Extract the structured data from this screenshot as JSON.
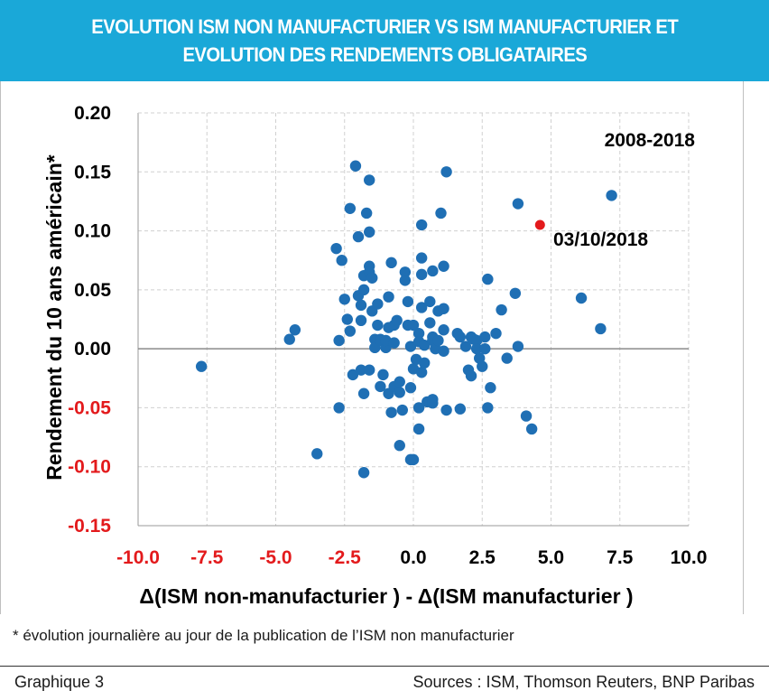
{
  "header": {
    "title_line1": "EVOLUTION ISM NON MANUFACTURIER VS ISM MANUFACTURIER ET",
    "title_line2": "EVOLUTION DES RENDEMENTS OBLIGATAIRES"
  },
  "footnote": "* évolution journalière au jour de la publication de l’ISM non manufacturier",
  "caption": {
    "left": "Graphique 3",
    "right": "Sources : ISM, Thomson Reuters, BNP Paribas"
  },
  "colors": {
    "header": "#1aa8d8",
    "points": "#1f6fb4",
    "highlight": "#e31a1c",
    "negative_tick": "#e31a1c"
  },
  "chart_data": {
    "type": "scatter",
    "xlabel": "Δ(ISM non-manufacturier )  - Δ(ISM manufacturier )",
    "ylabel": "Rendement du 10 ans américain*",
    "xlim": [
      -10,
      10
    ],
    "ylim": [
      -0.15,
      0.2
    ],
    "x_ticks": [
      "-10.0",
      "-7.5",
      "-5.0",
      "-2.5",
      "0.0",
      "2.5",
      "5.0",
      "7.5",
      "10.0"
    ],
    "y_ticks": [
      "0.20",
      "0.15",
      "0.10",
      "0.05",
      "0.00",
      "-0.05",
      "-0.10",
      "-0.15"
    ],
    "grid": true,
    "annotations": {
      "period": "2008-2018",
      "highlight_label": "03/10/2018"
    },
    "highlight": {
      "x": 4.6,
      "y": 0.105
    },
    "points": [
      [
        -7.7,
        -0.015
      ],
      [
        -4.5,
        0.008
      ],
      [
        -4.3,
        0.016
      ],
      [
        -3.5,
        -0.089
      ],
      [
        -2.8,
        0.085
      ],
      [
        -2.7,
        0.007
      ],
      [
        -2.7,
        -0.05
      ],
      [
        -2.6,
        0.075
      ],
      [
        -2.5,
        0.042
      ],
      [
        -2.4,
        0.025
      ],
      [
        -2.3,
        0.015
      ],
      [
        -2.3,
        0.119
      ],
      [
        -2.2,
        -0.022
      ],
      [
        -2.1,
        0.155
      ],
      [
        -2.0,
        0.095
      ],
      [
        -2.0,
        0.045
      ],
      [
        -1.9,
        0.037
      ],
      [
        -1.9,
        0.024
      ],
      [
        -1.9,
        -0.018
      ],
      [
        -1.8,
        0.05
      ],
      [
        -1.8,
        0.062
      ],
      [
        -1.8,
        -0.105
      ],
      [
        -1.8,
        -0.038
      ],
      [
        -1.7,
        0.115
      ],
      [
        -1.6,
        0.143
      ],
      [
        -1.6,
        0.099
      ],
      [
        -1.6,
        0.07
      ],
      [
        -1.6,
        0.065
      ],
      [
        -1.6,
        -0.018
      ],
      [
        -1.5,
        0.06
      ],
      [
        -1.5,
        0.032
      ],
      [
        -1.4,
        0.008
      ],
      [
        -1.4,
        0.001
      ],
      [
        -1.3,
        0.02
      ],
      [
        -1.3,
        0.038
      ],
      [
        -1.2,
        0.008
      ],
      [
        -1.2,
        0.007
      ],
      [
        -1.2,
        -0.032
      ],
      [
        -1.1,
        -0.022
      ],
      [
        -1.0,
        0.001
      ],
      [
        -1.0,
        0.007
      ],
      [
        -0.9,
        0.018
      ],
      [
        -0.9,
        0.044
      ],
      [
        -0.9,
        -0.038
      ],
      [
        -0.8,
        0.073
      ],
      [
        -0.8,
        -0.054
      ],
      [
        -0.7,
        0.02
      ],
      [
        -0.7,
        0.005
      ],
      [
        -0.7,
        -0.032
      ],
      [
        -0.6,
        0.024
      ],
      [
        -0.5,
        -0.028
      ],
      [
        -0.5,
        -0.037
      ],
      [
        -0.5,
        -0.082
      ],
      [
        -0.4,
        -0.052
      ],
      [
        -0.3,
        0.065
      ],
      [
        -0.3,
        0.058
      ],
      [
        -0.2,
        0.04
      ],
      [
        -0.2,
        0.02
      ],
      [
        -0.1,
        0.002
      ],
      [
        -0.1,
        -0.033
      ],
      [
        -0.1,
        -0.094
      ],
      [
        0.0,
        0.02
      ],
      [
        0.0,
        -0.017
      ],
      [
        0.0,
        -0.094
      ],
      [
        0.1,
        -0.009
      ],
      [
        0.2,
        0.013
      ],
      [
        0.2,
        0.006
      ],
      [
        0.2,
        -0.068
      ],
      [
        0.2,
        -0.05
      ],
      [
        0.3,
        0.077
      ],
      [
        0.3,
        0.063
      ],
      [
        0.3,
        0.105
      ],
      [
        0.3,
        0.035
      ],
      [
        0.3,
        -0.02
      ],
      [
        0.4,
        0.003
      ],
      [
        0.4,
        -0.012
      ],
      [
        0.5,
        -0.045
      ],
      [
        0.6,
        0.022
      ],
      [
        0.6,
        0.04
      ],
      [
        0.7,
        0.01
      ],
      [
        0.7,
        0.007
      ],
      [
        0.7,
        0.066
      ],
      [
        0.7,
        -0.043
      ],
      [
        0.7,
        -0.046
      ],
      [
        0.8,
        0.0
      ],
      [
        0.9,
        0.032
      ],
      [
        0.9,
        0.007
      ],
      [
        1.0,
        0.115
      ],
      [
        1.1,
        0.07
      ],
      [
        1.1,
        0.034
      ],
      [
        1.1,
        0.016
      ],
      [
        1.1,
        -0.002
      ],
      [
        1.2,
        0.15
      ],
      [
        1.2,
        -0.052
      ],
      [
        1.6,
        0.013
      ],
      [
        1.7,
        0.01
      ],
      [
        1.7,
        -0.051
      ],
      [
        1.9,
        0.002
      ],
      [
        2.0,
        -0.018
      ],
      [
        2.1,
        0.01
      ],
      [
        2.1,
        -0.023
      ],
      [
        2.2,
        0.008
      ],
      [
        2.3,
        0.007
      ],
      [
        2.3,
        0.0
      ],
      [
        2.4,
        -0.008
      ],
      [
        2.5,
        -0.015
      ],
      [
        2.6,
        0.01
      ],
      [
        2.6,
        0.0
      ],
      [
        2.7,
        0.059
      ],
      [
        2.7,
        -0.05
      ],
      [
        2.8,
        -0.033
      ],
      [
        3.0,
        0.013
      ],
      [
        3.2,
        0.033
      ],
      [
        3.4,
        -0.008
      ],
      [
        3.7,
        0.047
      ],
      [
        3.8,
        0.123
      ],
      [
        3.8,
        0.002
      ],
      [
        4.1,
        -0.057
      ],
      [
        4.3,
        -0.068
      ],
      [
        6.1,
        0.043
      ],
      [
        6.8,
        0.017
      ],
      [
        7.2,
        0.13
      ]
    ]
  }
}
